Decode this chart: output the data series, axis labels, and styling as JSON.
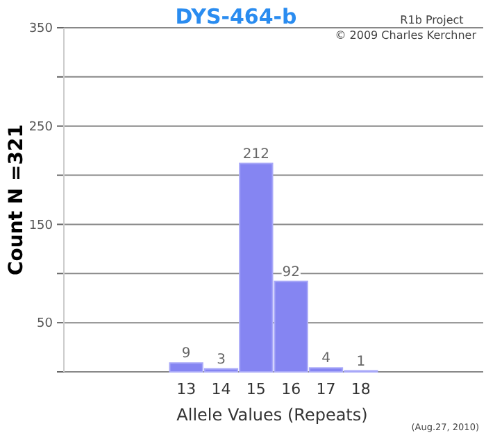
{
  "chart_data": {
    "type": "bar",
    "title": "DYS-464-b",
    "xlabel": "Allele Values (Repeats)",
    "ylabel": "Count N =321",
    "categories": [
      null,
      null,
      null,
      "13",
      "14",
      "15",
      "16",
      "17",
      "18",
      null,
      null,
      null
    ],
    "values": [
      null,
      null,
      null,
      9,
      3,
      212,
      92,
      4,
      1,
      null,
      null,
      null
    ],
    "color": "#8585f2",
    "data_labels": true,
    "ylim": [
      0,
      350
    ],
    "yticks": [
      {
        "value": 0,
        "label": null
      },
      50,
      {
        "value": 100,
        "label": null
      },
      150,
      {
        "value": 200,
        "label": null
      },
      250,
      {
        "value": 300,
        "label": null
      },
      350
    ],
    "grid": "y",
    "annotations": [
      "R1b Project",
      "© 2009 Charles Kerchner",
      "(Aug.27, 2010)"
    ]
  }
}
